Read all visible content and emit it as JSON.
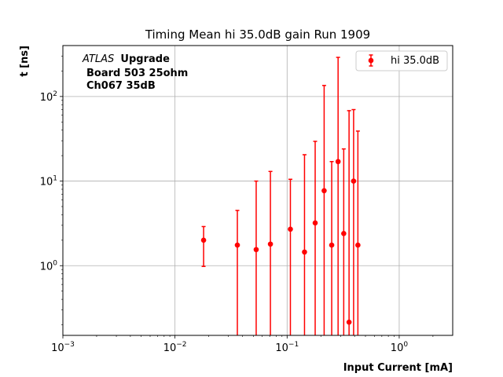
{
  "chart_data": {
    "type": "scatter",
    "title": "Timing Mean hi 35.0dB gain Run 1909",
    "xlabel": "Input Current [mA]",
    "ylabel": "t [ns]",
    "xscale": "log",
    "yscale": "log",
    "xlim": [
      0.001,
      3.0
    ],
    "ylim": [
      0.15,
      400
    ],
    "grid": true,
    "legend_position": "top-right",
    "annotation": {
      "atlas": "ATLAS",
      "upgrade": "Upgrade",
      "board": "Board 503 25ohm",
      "channel": "Ch067 35dB"
    },
    "series": [
      {
        "name": "hi 35.0dB",
        "color": "#ff0000",
        "points": [
          {
            "x": 0.018,
            "y": 2.0,
            "err_low": 0.98,
            "err_high": 2.9
          },
          {
            "x": 0.036,
            "y": 1.75,
            "err_low": 0.1,
            "err_high": 4.5
          },
          {
            "x": 0.053,
            "y": 1.55,
            "err_low": 0.1,
            "err_high": 10.0
          },
          {
            "x": 0.071,
            "y": 1.8,
            "err_low": 0.1,
            "err_high": 13.0
          },
          {
            "x": 0.107,
            "y": 2.7,
            "err_low": 0.1,
            "err_high": 10.5
          },
          {
            "x": 0.143,
            "y": 1.45,
            "err_low": 0.1,
            "err_high": 20.5
          },
          {
            "x": 0.178,
            "y": 3.2,
            "err_low": 0.1,
            "err_high": 29.5
          },
          {
            "x": 0.214,
            "y": 7.7,
            "err_low": 0.1,
            "err_high": 135.0
          },
          {
            "x": 0.25,
            "y": 1.75,
            "err_low": 0.1,
            "err_high": 17.0
          },
          {
            "x": 0.285,
            "y": 17.0,
            "err_low": 0.1,
            "err_high": 290.0
          },
          {
            "x": 0.32,
            "y": 2.4,
            "err_low": 0.1,
            "err_high": 24.0
          },
          {
            "x": 0.357,
            "y": 0.215,
            "err_low": 0.1,
            "err_high": 68.0
          },
          {
            "x": 0.392,
            "y": 10.0,
            "err_low": 0.1,
            "err_high": 70.0
          },
          {
            "x": 0.428,
            "y": 1.75,
            "err_low": 0.1,
            "err_high": 39.0
          }
        ]
      }
    ],
    "x_ticks": [
      {
        "value": 0.001,
        "base": "10",
        "exp": "−3"
      },
      {
        "value": 0.01,
        "base": "10",
        "exp": "−2"
      },
      {
        "value": 0.1,
        "base": "10",
        "exp": "−1"
      },
      {
        "value": 1.0,
        "base": "10",
        "exp": "0"
      }
    ],
    "y_ticks": [
      {
        "value": 1,
        "base": "10",
        "exp": "0"
      },
      {
        "value": 10,
        "base": "10",
        "exp": "1"
      },
      {
        "value": 100,
        "base": "10",
        "exp": "2"
      }
    ]
  }
}
